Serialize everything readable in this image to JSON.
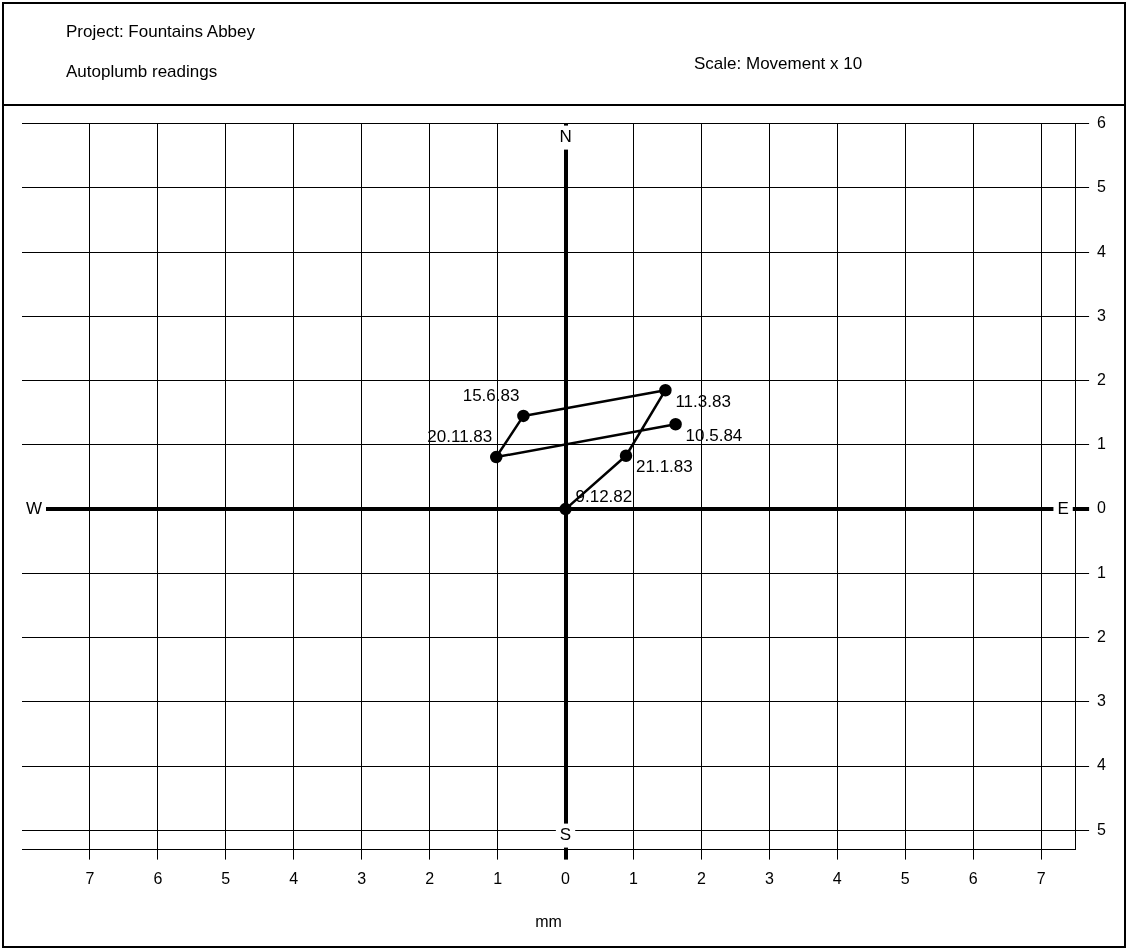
{
  "chart_data": {
    "type": "line",
    "title": "Project: Fountains Abbey",
    "subtitle": "Autoplumb readings",
    "xlabel": "mm",
    "annotations": [
      "Scale: Movement x 10",
      "N",
      "S",
      "W",
      "E",
      {
        "text": "9.12.82",
        "x": 0,
        "y": 0
      },
      {
        "text": "21.1.83",
        "x": 0.89,
        "y": 0.83
      },
      {
        "text": "11.3.83",
        "x": 1.47,
        "y": 1.85
      },
      {
        "text": "15.6.83",
        "x": -0.62,
        "y": 1.45
      },
      {
        "text": "20.11.83",
        "x": -1.02,
        "y": 0.81
      },
      {
        "text": "10.5.84",
        "x": 1.62,
        "y": 1.32
      }
    ],
    "series": [
      {
        "color": "#000000",
        "x": [
          0,
          0.89,
          1.47,
          -0.62,
          -1.02,
          1.62
        ],
        "values": [
          0,
          0.83,
          1.85,
          1.45,
          0.81,
          1.32
        ]
      }
    ],
    "xlim": [
      -8,
      7.5
    ],
    "ylim": [
      -5.3,
      6
    ],
    "xticks": [
      {
        "value": -7,
        "label": "7"
      },
      {
        "value": -6,
        "label": "6"
      },
      {
        "value": -5,
        "label": "5"
      },
      {
        "value": -4,
        "label": "4"
      },
      {
        "value": -3,
        "label": "3"
      },
      {
        "value": -2,
        "label": "2"
      },
      {
        "value": -1,
        "label": "1"
      },
      0,
      1,
      2,
      3,
      4,
      5,
      6,
      7
    ],
    "yticks": [
      {
        "value": -5,
        "label": "5"
      },
      {
        "value": -4,
        "label": "4"
      },
      {
        "value": -3,
        "label": "3"
      },
      {
        "value": -2,
        "label": "2"
      },
      {
        "value": -1,
        "label": "1"
      },
      0,
      1,
      2,
      3,
      4,
      5,
      6
    ],
    "grid": true,
    "legend": false,
    "marker": "circle",
    "line_style": "solid"
  }
}
